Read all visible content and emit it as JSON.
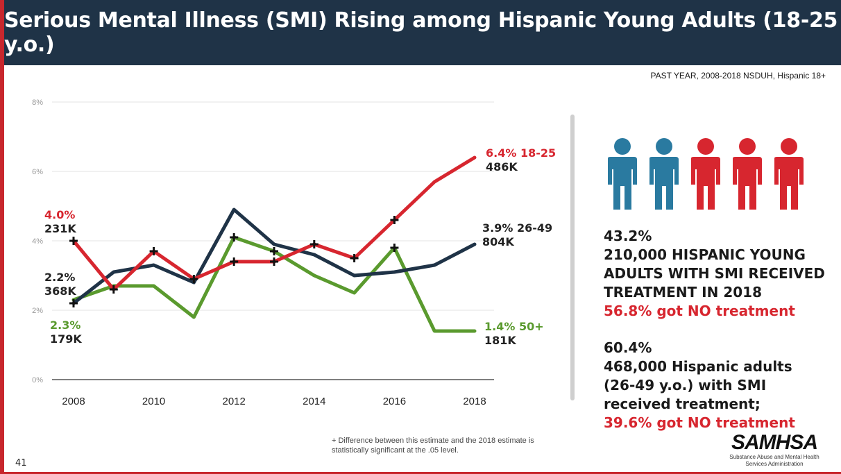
{
  "header": {
    "title": "Serious Mental Illness (SMI) Rising among Hispanic Young Adults (18-25 y.o.)"
  },
  "source_note": "PAST YEAR, 2008-2018 NSDUH, Hispanic 18+",
  "chart_data": {
    "type": "line",
    "x": [
      2008,
      2009,
      2010,
      2011,
      2012,
      2013,
      2014,
      2015,
      2016,
      2017,
      2018
    ],
    "x_tick_labels": [
      "2008",
      "2010",
      "2012",
      "2014",
      "2016",
      "2018"
    ],
    "y_tick_labels": [
      "0%",
      "2%",
      "4%",
      "6%",
      "8%"
    ],
    "ylim": [
      0,
      8
    ],
    "grid": true,
    "series": [
      {
        "name": "18-25",
        "color": "#d7262f",
        "values": [
          4.0,
          2.6,
          3.7,
          2.9,
          3.4,
          3.4,
          3.9,
          3.5,
          4.6,
          5.7,
          6.4
        ],
        "significant": [
          true,
          true,
          true,
          true,
          true,
          true,
          true,
          true,
          true,
          false,
          false
        ],
        "start_label": {
          "pct": "4.0%",
          "count": "231K"
        },
        "end_label": {
          "pct": "6.4%",
          "group": "18-25",
          "count": "486K"
        }
      },
      {
        "name": "26-49",
        "color": "#1f3347",
        "values": [
          2.2,
          3.1,
          3.3,
          2.8,
          4.9,
          3.9,
          3.6,
          3.0,
          3.1,
          3.3,
          3.9
        ],
        "significant": [
          true,
          false,
          false,
          false,
          false,
          false,
          false,
          false,
          false,
          false,
          false
        ],
        "start_label": {
          "pct": "2.2%",
          "count": "368K"
        },
        "end_label": {
          "pct": "3.9%",
          "group": "26-49",
          "count": "804K"
        }
      },
      {
        "name": "50+",
        "color": "#5a9a2e",
        "values": [
          2.3,
          2.7,
          2.7,
          1.8,
          4.1,
          3.7,
          3.0,
          2.5,
          3.8,
          1.4,
          1.4
        ],
        "significant": [
          false,
          false,
          false,
          false,
          true,
          true,
          false,
          false,
          true,
          false,
          false
        ],
        "start_label": {
          "pct": "2.3%",
          "count": "179K"
        },
        "end_label": {
          "pct": "1.4%",
          "group": "50+",
          "count": "181K"
        }
      }
    ]
  },
  "people_icons": [
    {
      "name": "person-icon",
      "color": "#2a7aa0"
    },
    {
      "name": "person-icon",
      "color": "#2a7aa0"
    },
    {
      "name": "person-icon",
      "color": "#d7262f"
    },
    {
      "name": "person-icon",
      "color": "#d7262f"
    },
    {
      "name": "person-icon",
      "color": "#d7262f"
    }
  ],
  "young_adults": {
    "pct": "43.2%",
    "line1": "210,000 HISPANIC YOUNG",
    "line2": "ADULTS WITH SMI RECEIVED",
    "line3": "TREATMENT IN 2018",
    "no_treatment": "56.8% got NO treatment"
  },
  "adults": {
    "pct": "60.4%",
    "line1": "468,000 Hispanic adults",
    "line2": "(26-49 y.o.) with SMI",
    "line3": "received treatment;",
    "no_treatment": "39.6% got NO treatment"
  },
  "footnote": {
    "line1": "+ Difference between this estimate and the 2018 estimate is",
    "line2": "statistically significant at the .05 level."
  },
  "page_number": "41",
  "logo": {
    "name": "SAMHSA",
    "sub1": "Substance Abuse and Mental Health",
    "sub2": "Services Administration"
  }
}
